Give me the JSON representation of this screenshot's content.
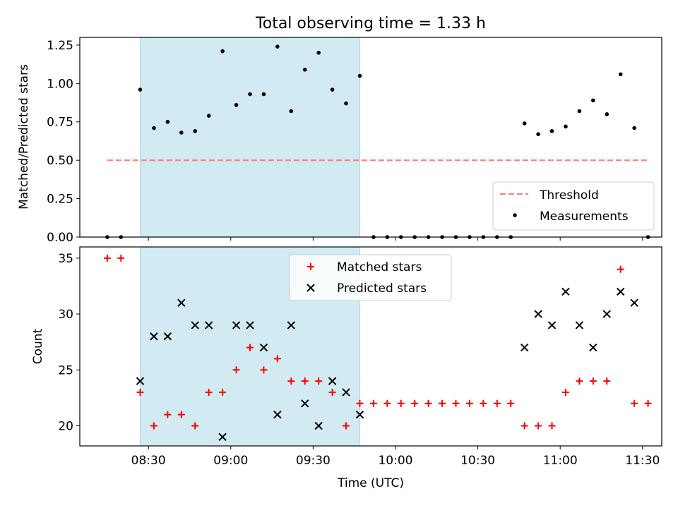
{
  "figure": {
    "title": "Total observing time = 1.33 h",
    "xlabel": "Time (UTC)"
  },
  "colors": {
    "shade": "#add8e6",
    "threshold": "#ff7f7f",
    "measurements": "#000000",
    "matched": "#ff0000",
    "predicted": "#000000"
  },
  "chart_data": [
    {
      "type": "scatter",
      "panel": "top",
      "ylabel": "Matched/Predicted stars",
      "xlim": [
        "08:05",
        "11:37"
      ],
      "ylim": [
        0,
        1.3
      ],
      "yticks": [
        0.0,
        0.25,
        0.5,
        0.75,
        1.0,
        1.25
      ],
      "ytick_labels": [
        "0.00",
        "0.25",
        "0.50",
        "0.75",
        "1.00",
        "1.25"
      ],
      "xticks": [
        "08:30",
        "09:00",
        "09:30",
        "10:00",
        "10:30",
        "11:00",
        "11:30"
      ],
      "shaded_interval": [
        "08:27",
        "09:47"
      ],
      "threshold": {
        "name": "Threshold",
        "value": 0.5,
        "x": [
          "08:15",
          "11:32"
        ],
        "style": "dashed"
      },
      "legend": {
        "position": "lower right",
        "entries": [
          "Threshold",
          "Measurements"
        ]
      },
      "series": [
        {
          "name": "Measurements",
          "marker": "dot",
          "x": [
            "08:15",
            "08:20",
            "08:27",
            "08:32",
            "08:37",
            "08:42",
            "08:47",
            "08:52",
            "08:57",
            "09:02",
            "09:07",
            "09:12",
            "09:17",
            "09:22",
            "09:27",
            "09:32",
            "09:37",
            "09:42",
            "09:47",
            "09:52",
            "09:57",
            "10:02",
            "10:07",
            "10:12",
            "10:17",
            "10:22",
            "10:27",
            "10:32",
            "10:37",
            "10:42",
            "10:47",
            "10:52",
            "10:57",
            "11:02",
            "11:07",
            "11:12",
            "11:17",
            "11:22",
            "11:27",
            "11:32"
          ],
          "y": [
            0,
            0,
            0.96,
            0.71,
            0.75,
            0.68,
            0.69,
            0.79,
            1.21,
            0.86,
            0.93,
            0.93,
            1.24,
            0.82,
            1.09,
            1.2,
            0.96,
            0.87,
            1.05,
            0,
            0,
            0,
            0,
            0,
            0,
            0,
            0,
            0,
            0,
            0,
            0.74,
            0.67,
            0.69,
            0.72,
            0.82,
            0.89,
            0.8,
            1.06,
            0.71,
            0
          ]
        }
      ]
    },
    {
      "type": "scatter",
      "panel": "bottom",
      "ylabel": "Count",
      "xlim": [
        "08:05",
        "11:37"
      ],
      "ylim": [
        18.2,
        36
      ],
      "yticks": [
        20,
        25,
        30,
        35
      ],
      "ytick_labels": [
        "20",
        "25",
        "30",
        "35"
      ],
      "xticks": [
        "08:30",
        "09:00",
        "09:30",
        "10:00",
        "10:30",
        "11:00",
        "11:30"
      ],
      "xtick_labels": [
        "08:30",
        "09:00",
        "09:30",
        "10:00",
        "10:30",
        "11:00",
        "11:30"
      ],
      "shaded_interval": [
        "08:27",
        "09:47"
      ],
      "legend": {
        "position": "upper center",
        "entries": [
          "Matched stars",
          "Predicted stars"
        ]
      },
      "series": [
        {
          "name": "Matched stars",
          "marker": "plus",
          "x": [
            "08:15",
            "08:20",
            "08:27",
            "08:32",
            "08:37",
            "08:42",
            "08:47",
            "08:52",
            "08:57",
            "09:02",
            "09:07",
            "09:12",
            "09:17",
            "09:22",
            "09:27",
            "09:32",
            "09:37",
            "09:42",
            "09:47",
            "09:52",
            "09:57",
            "10:02",
            "10:07",
            "10:12",
            "10:17",
            "10:22",
            "10:27",
            "10:32",
            "10:37",
            "10:42",
            "10:47",
            "10:52",
            "10:57",
            "11:02",
            "11:07",
            "11:12",
            "11:17",
            "11:22",
            "11:27",
            "11:32"
          ],
          "y": [
            35,
            35,
            23,
            20,
            21,
            21,
            20,
            23,
            23,
            25,
            27,
            25,
            26,
            24,
            24,
            24,
            23,
            20,
            22,
            22,
            22,
            22,
            22,
            22,
            22,
            22,
            22,
            22,
            22,
            22,
            20,
            20,
            20,
            23,
            24,
            24,
            24,
            34,
            22,
            22
          ]
        },
        {
          "name": "Predicted stars",
          "marker": "x",
          "x": [
            "08:27",
            "08:32",
            "08:37",
            "08:42",
            "08:47",
            "08:52",
            "08:57",
            "09:02",
            "09:07",
            "09:12",
            "09:17",
            "09:22",
            "09:27",
            "09:32",
            "09:37",
            "09:42",
            "09:47",
            "10:47",
            "10:52",
            "10:57",
            "11:02",
            "11:07",
            "11:12",
            "11:17",
            "11:22",
            "11:27"
          ],
          "y": [
            24,
            28,
            28,
            31,
            29,
            29,
            19,
            29,
            29,
            27,
            21,
            29,
            22,
            20,
            24,
            23,
            21,
            27,
            30,
            29,
            32,
            29,
            27,
            30,
            32,
            31
          ]
        }
      ]
    }
  ]
}
